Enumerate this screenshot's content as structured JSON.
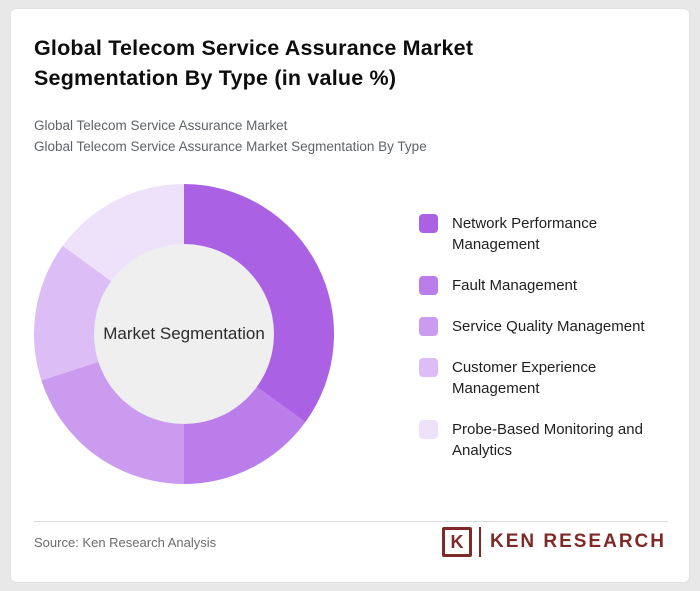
{
  "page": {
    "title": "Global Telecom Service Assurance Market Segmentation By Type (in value %)",
    "subtitle_line1": "Global Telecom Service Assurance Market",
    "subtitle_line2": "Global Telecom Service Assurance Market Segmentation By Type"
  },
  "chart_data": {
    "type": "pie",
    "variant": "donut",
    "title": "Global Telecom Service Assurance Market Segmentation By Type (in value %)",
    "center_label": "Market Segmentation",
    "categories": [
      "Network Performance Management",
      "Fault Management",
      "Service Quality Management",
      "Customer Experience Management",
      "Probe-Based Monitoring and Analytics"
    ],
    "values": [
      35,
      15,
      20,
      15,
      15
    ],
    "unit": "value %",
    "colors": [
      "#aa61e4",
      "#bb7dea",
      "#cb9bef",
      "#dcbdf5",
      "#eee2fb"
    ],
    "center_circle_color": "#efefef",
    "legend_position": "right",
    "start_angle_deg": 0,
    "direction": "clockwise"
  },
  "footer": {
    "source": "Source: Ken Research Analysis",
    "logo_letter": "K",
    "logo_text": "KEN RESEARCH",
    "logo_color": "#7e2a27"
  }
}
